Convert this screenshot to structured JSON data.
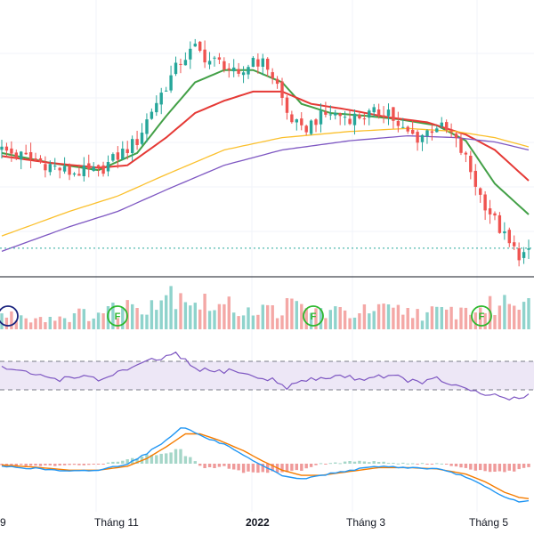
{
  "colors": {
    "up": "#26a69a",
    "down": "#ef5350",
    "volume_up": "#8fd3cc",
    "volume_down": "#f4a8a6",
    "ma_fast": "#43a047",
    "ma_mid": "#e53935",
    "ma_slow": "#fbc02d",
    "ma_long": "#7e57c2",
    "rsi_line": "#7e57c2",
    "rsi_band": "#ede7f6",
    "macd_line": "#2196f3",
    "signal_line": "#f57c00",
    "hist_pos": "#a5d6c8",
    "hist_neg": "#ef9a9a",
    "marker_green": "#2eb82e",
    "marker_blue": "#1a237e"
  },
  "x_axis": {
    "labels": [
      {
        "text": "9",
        "bold": false
      },
      {
        "text": "Tháng 11",
        "bold": false
      },
      {
        "text": "2022",
        "bold": true
      },
      {
        "text": "Tháng 3",
        "bold": false
      },
      {
        "text": "Tháng 5",
        "bold": false
      }
    ]
  },
  "markers": [
    {
      "letter": "",
      "color_key": "marker_blue"
    },
    {
      "letter": "F",
      "color_key": "marker_green"
    },
    {
      "letter": "F",
      "color_key": "marker_green"
    },
    {
      "letter": "F",
      "color_key": "marker_green"
    }
  ],
  "chart_data": {
    "type": "candlestick",
    "candle_count": 110,
    "close_anchors": [
      [
        0,
        38.5
      ],
      [
        6,
        37.0
      ],
      [
        10,
        36.0
      ],
      [
        14,
        34.8
      ],
      [
        20,
        35.0
      ],
      [
        24,
        37.5
      ],
      [
        28,
        40.0
      ],
      [
        31,
        45.0
      ],
      [
        34,
        49.0
      ],
      [
        37,
        53.0
      ],
      [
        40,
        55.0
      ],
      [
        43,
        53.0
      ],
      [
        46,
        52.5
      ],
      [
        49,
        50.0
      ],
      [
        52,
        53.5
      ],
      [
        55,
        52.0
      ],
      [
        57,
        49.0
      ],
      [
        59,
        44.5
      ],
      [
        62,
        41.5
      ],
      [
        65,
        43.5
      ],
      [
        68,
        44.5
      ],
      [
        72,
        43.8
      ],
      [
        76,
        44.2
      ],
      [
        80,
        45.0
      ],
      [
        82,
        42.0
      ],
      [
        86,
        40.5
      ],
      [
        90,
        42.5
      ],
      [
        93,
        41.0
      ],
      [
        96,
        37.0
      ],
      [
        99,
        31.0
      ],
      [
        102,
        27.0
      ],
      [
        105,
        23.0
      ],
      [
        107,
        21.5
      ],
      [
        109,
        21.5
      ]
    ],
    "moving_averages": [
      {
        "key": "ma_fast",
        "anchors": [
          [
            0,
            38.0
          ],
          [
            10,
            36.4
          ],
          [
            20,
            35.2
          ],
          [
            28,
            38.0
          ],
          [
            34,
            44.0
          ],
          [
            40,
            49.5
          ],
          [
            46,
            51.5
          ],
          [
            52,
            51.5
          ],
          [
            58,
            49.5
          ],
          [
            62,
            46.0
          ],
          [
            68,
            44.5
          ],
          [
            76,
            44.0
          ],
          [
            82,
            43.5
          ],
          [
            90,
            42.5
          ],
          [
            96,
            40.0
          ],
          [
            102,
            33.0
          ],
          [
            109,
            28.0
          ]
        ]
      },
      {
        "key": "ma_mid",
        "anchors": [
          [
            0,
            37.5
          ],
          [
            10,
            36.4
          ],
          [
            20,
            35.6
          ],
          [
            26,
            36.0
          ],
          [
            34,
            40.5
          ],
          [
            40,
            44.5
          ],
          [
            46,
            46.5
          ],
          [
            52,
            48.0
          ],
          [
            58,
            48.0
          ],
          [
            64,
            46.0
          ],
          [
            72,
            45.0
          ],
          [
            80,
            43.8
          ],
          [
            88,
            43.0
          ],
          [
            96,
            41.0
          ],
          [
            102,
            38.5
          ],
          [
            109,
            33.5
          ]
        ]
      },
      {
        "key": "ma_slow",
        "anchors": [
          [
            0,
            24.5
          ],
          [
            14,
            28.5
          ],
          [
            24,
            31.0
          ],
          [
            34,
            34.5
          ],
          [
            46,
            38.5
          ],
          [
            58,
            40.5
          ],
          [
            72,
            41.5
          ],
          [
            84,
            42.0
          ],
          [
            94,
            41.5
          ],
          [
            102,
            40.5
          ],
          [
            109,
            39.0
          ]
        ]
      },
      {
        "key": "ma_long",
        "anchors": [
          [
            0,
            22.0
          ],
          [
            14,
            26.0
          ],
          [
            24,
            28.5
          ],
          [
            34,
            32.0
          ],
          [
            46,
            36.0
          ],
          [
            58,
            38.5
          ],
          [
            72,
            40.0
          ],
          [
            84,
            40.8
          ],
          [
            94,
            40.5
          ],
          [
            102,
            39.8
          ],
          [
            109,
            38.5
          ]
        ]
      }
    ],
    "last_price_line": 22.5,
    "volume_anchors": [
      [
        0,
        30
      ],
      [
        10,
        25
      ],
      [
        20,
        35
      ],
      [
        26,
        50
      ],
      [
        30,
        60
      ],
      [
        33,
        70
      ],
      [
        36,
        85
      ],
      [
        38,
        80
      ],
      [
        40,
        60
      ],
      [
        45,
        50
      ],
      [
        50,
        45
      ],
      [
        55,
        40
      ],
      [
        60,
        50
      ],
      [
        65,
        40
      ],
      [
        70,
        35
      ],
      [
        80,
        40
      ],
      [
        90,
        35
      ],
      [
        100,
        45
      ],
      [
        105,
        60
      ],
      [
        109,
        70
      ]
    ],
    "rsi": {
      "upper": 70,
      "lower": 30,
      "anchors": [
        [
          0,
          62
        ],
        [
          4,
          55
        ],
        [
          8,
          50
        ],
        [
          12,
          45
        ],
        [
          16,
          50
        ],
        [
          20,
          43
        ],
        [
          24,
          55
        ],
        [
          28,
          62
        ],
        [
          30,
          70
        ],
        [
          33,
          74
        ],
        [
          36,
          80
        ],
        [
          38,
          70
        ],
        [
          40,
          60
        ],
        [
          44,
          55
        ],
        [
          48,
          58
        ],
        [
          52,
          48
        ],
        [
          56,
          44
        ],
        [
          59,
          34
        ],
        [
          62,
          42
        ],
        [
          66,
          46
        ],
        [
          70,
          50
        ],
        [
          74,
          45
        ],
        [
          78,
          50
        ],
        [
          82,
          48
        ],
        [
          86,
          40
        ],
        [
          90,
          45
        ],
        [
          93,
          38
        ],
        [
          96,
          30
        ],
        [
          99,
          24
        ],
        [
          102,
          22
        ],
        [
          105,
          18
        ],
        [
          107,
          16
        ],
        [
          109,
          24
        ]
      ]
    },
    "macd": {
      "macd_anchors": [
        [
          0,
          -0.2
        ],
        [
          8,
          -0.4
        ],
        [
          14,
          -0.6
        ],
        [
          20,
          -0.5
        ],
        [
          26,
          0.0
        ],
        [
          30,
          0.8
        ],
        [
          34,
          1.8
        ],
        [
          37,
          2.8
        ],
        [
          39,
          2.6
        ],
        [
          42,
          2.0
        ],
        [
          46,
          1.5
        ],
        [
          50,
          0.6
        ],
        [
          54,
          -0.2
        ],
        [
          58,
          -0.9
        ],
        [
          62,
          -1.2
        ],
        [
          66,
          -0.9
        ],
        [
          72,
          -0.5
        ],
        [
          78,
          -0.2
        ],
        [
          84,
          -0.3
        ],
        [
          90,
          -0.4
        ],
        [
          96,
          -1.0
        ],
        [
          100,
          -1.8
        ],
        [
          104,
          -2.6
        ],
        [
          107,
          -2.9
        ],
        [
          109,
          -2.9
        ]
      ],
      "signal_anchors": [
        [
          0,
          -0.1
        ],
        [
          8,
          -0.3
        ],
        [
          14,
          -0.5
        ],
        [
          20,
          -0.5
        ],
        [
          26,
          -0.2
        ],
        [
          30,
          0.4
        ],
        [
          34,
          1.3
        ],
        [
          38,
          2.3
        ],
        [
          41,
          2.3
        ],
        [
          45,
          1.8
        ],
        [
          50,
          1.0
        ],
        [
          54,
          0.2
        ],
        [
          58,
          -0.5
        ],
        [
          62,
          -0.9
        ],
        [
          66,
          -0.9
        ],
        [
          72,
          -0.6
        ],
        [
          78,
          -0.3
        ],
        [
          84,
          -0.3
        ],
        [
          90,
          -0.4
        ],
        [
          96,
          -0.8
        ],
        [
          100,
          -1.4
        ],
        [
          104,
          -2.2
        ],
        [
          107,
          -2.6
        ],
        [
          109,
          -2.7
        ]
      ]
    }
  }
}
